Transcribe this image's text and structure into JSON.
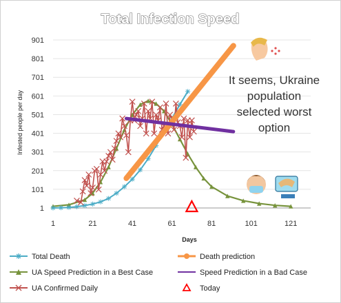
{
  "chart_data": {
    "type": "line",
    "title": "Total Infection Speed",
    "xlabel": "Days",
    "ylabel": "Infested people per day",
    "xlim": [
      1,
      131
    ],
    "ylim": [
      1,
      901
    ],
    "x_ticks": [
      1,
      21,
      41,
      61,
      81,
      101,
      121
    ],
    "y_ticks": [
      1,
      101,
      201,
      301,
      401,
      501,
      601,
      701,
      801,
      901
    ],
    "annotation": [
      "It seems, Ukraine",
      "population",
      "selected worst",
      "option"
    ],
    "legend": {
      "placement": "bottom",
      "entries": [
        {
          "name": "Total Death",
          "color": "#4bacc6"
        },
        {
          "name": "Death prediction",
          "color": "#f79646"
        },
        {
          "name": "UA Speed  Prediction in a  Best Case",
          "color": "#77933c"
        },
        {
          "name": "Speed Prediction in a Bad Case",
          "color": "#7030a0"
        },
        {
          "name": "UA Confirmed Daily",
          "color": "#c0504d"
        },
        {
          "name": "Today",
          "color": "#ff0000"
        }
      ]
    },
    "series": [
      {
        "name": "Total Death",
        "color": "#4bacc6",
        "x": [
          1,
          5,
          9,
          13,
          17,
          21,
          25,
          29,
          33,
          37,
          41,
          45,
          49,
          53,
          57,
          61,
          65,
          69
        ],
        "values": [
          1,
          2,
          4,
          8,
          14,
          22,
          34,
          52,
          80,
          115,
          155,
          205,
          265,
          335,
          410,
          480,
          555,
          625
        ]
      },
      {
        "name": "Death prediction",
        "color": "#f79646",
        "x": [
          38,
          92
        ],
        "values": [
          160,
          870
        ]
      },
      {
        "name": "UA Speed  Prediction in a  Best Case",
        "color": "#77933c",
        "x": [
          1,
          9,
          17,
          21,
          25,
          29,
          33,
          37,
          41,
          45,
          49,
          53,
          57,
          61,
          65,
          69,
          73,
          77,
          81,
          89,
          97,
          105,
          113,
          121
        ],
        "values": [
          10,
          18,
          45,
          80,
          140,
          220,
          320,
          420,
          500,
          555,
          575,
          560,
          520,
          450,
          370,
          290,
          220,
          160,
          115,
          65,
          40,
          25,
          15,
          10
        ]
      },
      {
        "name": "Speed Prediction in a Bad Case",
        "color": "#7030a0",
        "x": [
          38,
          92
        ],
        "values": [
          480,
          410
        ]
      },
      {
        "name": "UA Confirmed Daily",
        "color": "#c0504d",
        "x": [
          13,
          15,
          16,
          17,
          18,
          19,
          20,
          21,
          22,
          23,
          24,
          25,
          26,
          27,
          28,
          29,
          30,
          31,
          32,
          33,
          34,
          35,
          36,
          37,
          38,
          39,
          40,
          41,
          42,
          43,
          44,
          45,
          46,
          47,
          48,
          49,
          50,
          51,
          52,
          53,
          54,
          55,
          56,
          57,
          58,
          59,
          60,
          61,
          62,
          63,
          64,
          65,
          66,
          67,
          68,
          69,
          70,
          71,
          72
        ],
        "values": [
          40,
          30,
          90,
          150,
          120,
          180,
          80,
          110,
          200,
          210,
          100,
          180,
          250,
          200,
          250,
          280,
          300,
          260,
          320,
          360,
          400,
          380,
          480,
          440,
          390,
          300,
          470,
          570,
          470,
          500,
          520,
          440,
          480,
          560,
          400,
          520,
          480,
          570,
          400,
          500,
          470,
          540,
          420,
          440,
          560,
          400,
          500,
          480,
          420,
          560,
          460,
          440,
          380,
          480,
          270,
          470,
          380,
          470,
          410
        ]
      },
      {
        "name": "Today",
        "color": "#ff0000",
        "type": "marker",
        "x": [
          71
        ],
        "values": [
          1
        ]
      }
    ]
  }
}
